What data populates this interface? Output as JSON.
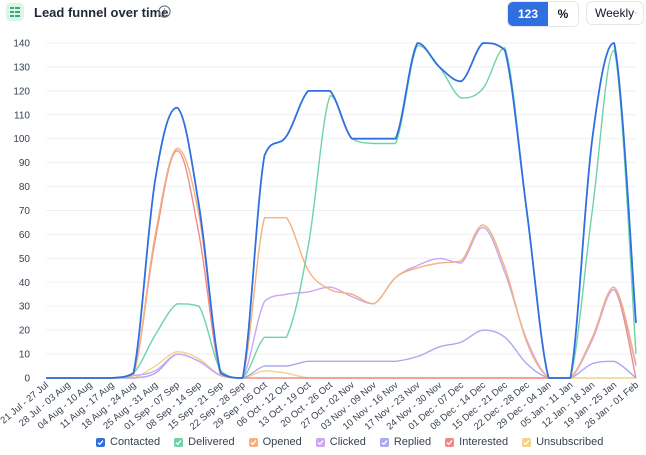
{
  "header": {
    "title": "Lead funnel over time",
    "toggle_count_label": "123",
    "toggle_percent_label": "%",
    "period_label": "Weekly"
  },
  "colors": {
    "accent": "#2f6fe0",
    "grid": "#eef0f3"
  },
  "chart_data": {
    "type": "line",
    "title": "Lead funnel over time",
    "xlabel": "",
    "ylabel": "",
    "ylim": [
      0,
      140
    ],
    "yticks": [
      0,
      10,
      20,
      30,
      40,
      50,
      60,
      70,
      80,
      90,
      100,
      110,
      120,
      130,
      140
    ],
    "grid": true,
    "legend_placement": "bottom",
    "categories": [
      "21 Jul - 27 Jul",
      "28 Jul - 03 Aug",
      "04 Aug - 10 Aug",
      "11 Aug - 17 Aug",
      "18 Aug - 24 Aug",
      "25 Aug - 31 Aug",
      "01 Sep - 07 Sep",
      "08 Sep - 14 Sep",
      "15 Sep - 21 Sep",
      "22 Sep - 28 Sep",
      "29 Sep - 05 Oct",
      "06 Oct - 12 Oct",
      "13 Oct - 19 Oct",
      "20 Oct - 26 Oct",
      "27 Oct - 02 Nov",
      "03 Nov - 09 Nov",
      "10 Nov - 16 Nov",
      "17 Nov - 23 Nov",
      "24 Nov - 30 Nov",
      "01 Dec - 07 Dec",
      "08 Dec - 14 Dec",
      "15 Dec - 21 Dec",
      "22 Dec - 28 Dec",
      "29 Dec - 04 Jan",
      "05 Jan - 11 Jan",
      "12 Jan - 18 Jan",
      "19 Jan - 25 Jan",
      "26 Jan - 01 Feb"
    ],
    "series": [
      {
        "name": "Contacted",
        "color": "#2f6fe0",
        "values": [
          0,
          0,
          0,
          0,
          2,
          83,
          113,
          72,
          2,
          0,
          93,
          101,
          120,
          120,
          100,
          100,
          100,
          140,
          130,
          124,
          140,
          137,
          70,
          0,
          0,
          100,
          140,
          23
        ]
      },
      {
        "name": "Delivered",
        "color": "#6fd3a8",
        "values": [
          0,
          0,
          0,
          0,
          2,
          18,
          31,
          30,
          3,
          0,
          17,
          17,
          55,
          118,
          100,
          98,
          98,
          139,
          130,
          117,
          121,
          138,
          70,
          0,
          0,
          70,
          137,
          10
        ]
      },
      {
        "name": "Opened",
        "color": "#f5b07f",
        "values": [
          0,
          0,
          0,
          0,
          1,
          60,
          96,
          68,
          1,
          0,
          67,
          67,
          45,
          37,
          35,
          31,
          42,
          46,
          48,
          49,
          64,
          46,
          15,
          0,
          0,
          17,
          38,
          6
        ]
      },
      {
        "name": "Clicked",
        "color": "#c9a7f2",
        "values": [
          0,
          0,
          0,
          0,
          1,
          3,
          10,
          7,
          1,
          0,
          32,
          35,
          36,
          38,
          34,
          31,
          42,
          47,
          50,
          48,
          63,
          44,
          16,
          0,
          0,
          16,
          37,
          5
        ]
      },
      {
        "name": "Replied",
        "color": "#a9a9ef",
        "values": [
          0,
          0,
          0,
          0,
          0,
          2,
          10,
          7,
          1,
          0,
          5,
          5,
          7,
          7,
          7,
          7,
          7,
          9,
          13,
          15,
          20,
          17,
          6,
          0,
          0,
          6,
          7,
          0
        ]
      },
      {
        "name": "Interested",
        "color": "#ef8a8a",
        "values": [
          0,
          0,
          0,
          0,
          1,
          58,
          95,
          60,
          1,
          0,
          0,
          0,
          0,
          0,
          0,
          0,
          0,
          0,
          0,
          0,
          0,
          0,
          0,
          0,
          0,
          16,
          37,
          0
        ]
      },
      {
        "name": "Unsubscribed",
        "color": "#f3d28a",
        "values": [
          0,
          0,
          0,
          0,
          0,
          5,
          11,
          8,
          1,
          0,
          3,
          2,
          0,
          0,
          0,
          0,
          0,
          0,
          0,
          0,
          0,
          0,
          0,
          0,
          0,
          0,
          0,
          0
        ]
      }
    ]
  }
}
